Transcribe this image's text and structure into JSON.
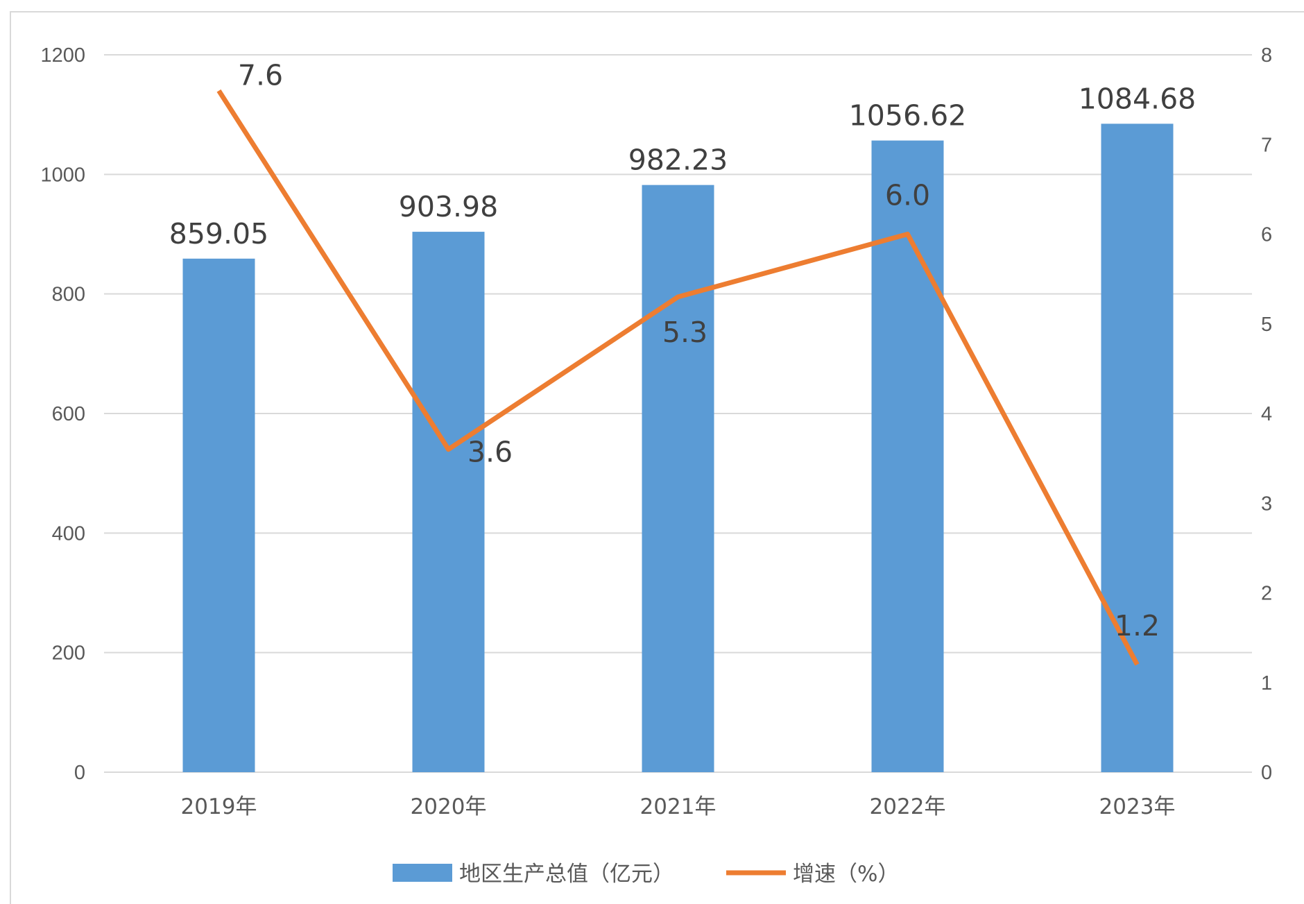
{
  "chart_data": {
    "type": "bar",
    "title": "",
    "categories": [
      "2019年",
      "2020年",
      "2021年",
      "2022年",
      "2023年"
    ],
    "series": [
      {
        "name": "地区生产总值（亿元）",
        "type": "bar",
        "axis": "left",
        "color": "#5b9bd5",
        "values": [
          859.05,
          903.98,
          982.23,
          1056.62,
          1084.68
        ],
        "labels": [
          "859.05",
          "903.98",
          "982.23",
          "1056.62",
          "1084.68"
        ]
      },
      {
        "name": "增速（%）",
        "type": "line",
        "axis": "right",
        "color": "#ed7d31",
        "values": [
          7.6,
          3.6,
          5.3,
          6.0,
          1.2
        ],
        "labels": [
          "7.6",
          "3.6",
          "5.3",
          "6.0",
          "1.2"
        ]
      }
    ],
    "y_left": {
      "range": [
        0,
        1200
      ],
      "ticks": [
        "0",
        "200",
        "400",
        "600",
        "800",
        "1000",
        "1200"
      ]
    },
    "y_right": {
      "range": [
        0,
        8
      ],
      "ticks": [
        "0",
        "1",
        "2",
        "3",
        "4",
        "5",
        "6",
        "7",
        "8"
      ]
    },
    "grid": true,
    "legend": "bottom"
  }
}
